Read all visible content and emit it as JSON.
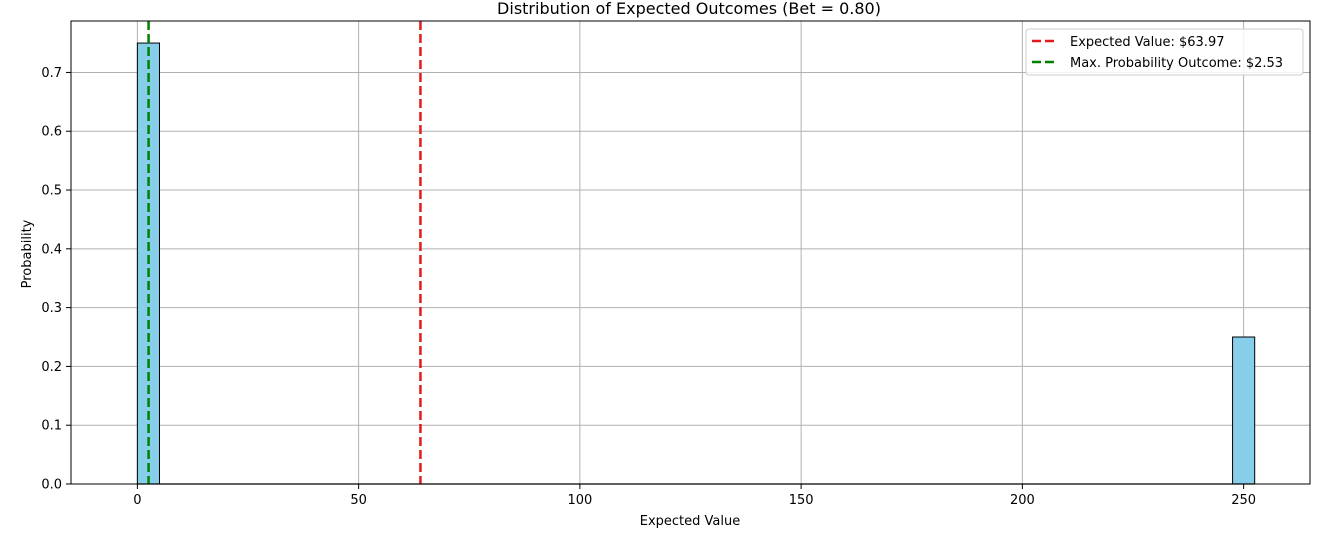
{
  "chart_data": {
    "type": "bar",
    "title": "Distribution of Expected Outcomes (Bet = 0.80)",
    "xlabel": "Expected Value",
    "ylabel": "Probability",
    "xlim": [
      -15,
      265
    ],
    "ylim": [
      0,
      0.7875
    ],
    "xticks": [
      0,
      50,
      100,
      150,
      200,
      250
    ],
    "yticks": [
      0.0,
      0.1,
      0.2,
      0.3,
      0.4,
      0.5,
      0.6,
      0.7
    ],
    "xtick_labels": [
      "0",
      "50",
      "100",
      "150",
      "200",
      "250"
    ],
    "ytick_labels": [
      "0.0",
      "0.1",
      "0.2",
      "0.3",
      "0.4",
      "0.5",
      "0.6",
      "0.7"
    ],
    "grid": true,
    "legend_position": "top-right",
    "bin_width": 5,
    "bins": [
      {
        "start": 0,
        "value": 0.75
      },
      {
        "start": 247.5,
        "value": 0.25
      }
    ],
    "reference_lines": [
      {
        "label": "Expected Value: $63.97",
        "x": 63.97,
        "color": "#e31a1c"
      },
      {
        "label": "Max. Probability Outcome: $2.53",
        "x": 2.53,
        "color": "#008000"
      }
    ],
    "colors": {
      "bar_fill": "#87ceeb",
      "bar_edge": "#000000",
      "grid": "#b0b0b0"
    }
  }
}
